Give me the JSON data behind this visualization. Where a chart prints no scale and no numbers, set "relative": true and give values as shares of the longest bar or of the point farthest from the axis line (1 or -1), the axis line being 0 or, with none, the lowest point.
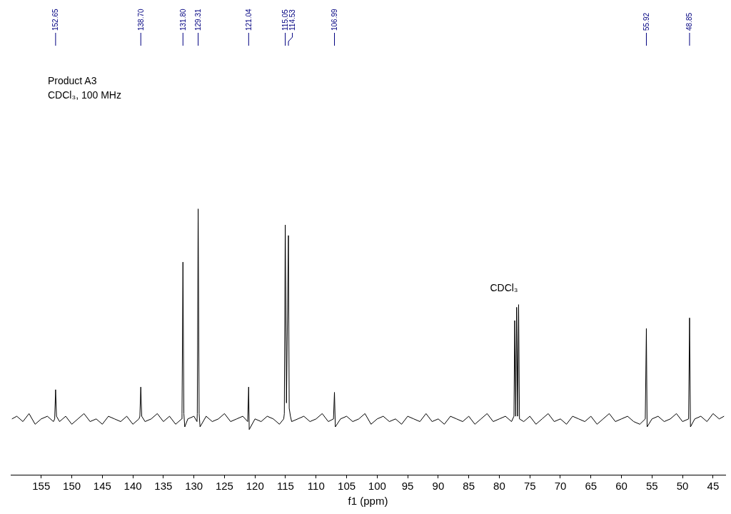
{
  "chart_data": {
    "type": "line",
    "title": "Product A3",
    "subtitle": "CDCl₃, 100 MHz",
    "xlabel": "f1 (ppm)",
    "relative": true,
    "grid": false,
    "xlim": [
      160,
      43
    ],
    "xticks": [
      155,
      150,
      145,
      140,
      135,
      130,
      125,
      120,
      115,
      110,
      105,
      100,
      95,
      90,
      85,
      80,
      75,
      70,
      65,
      60,
      55,
      50,
      45
    ],
    "annotations": [
      {
        "text": "152.65",
        "x": 152.65
      },
      {
        "text": "138.70",
        "x": 138.7
      },
      {
        "text": "131.80",
        "x": 131.8
      },
      {
        "text": "129.31",
        "x": 129.31
      },
      {
        "text": "121.04",
        "x": 121.04
      },
      {
        "text": "115.05",
        "x": 115.05
      },
      {
        "text": "114.53",
        "x": 114.53
      },
      {
        "text": "106.99",
        "x": 106.99
      },
      {
        "text": "55.92",
        "x": 55.92
      },
      {
        "text": "48.85",
        "x": 48.85
      },
      "CDCl₃"
    ],
    "series": [
      {
        "color": "#000000",
        "x": [
          159.8,
          159,
          158,
          157,
          156,
          155,
          154,
          153,
          152.8,
          152.65,
          152.5,
          152,
          151,
          150,
          149,
          148,
          147,
          146,
          145,
          144,
          143,
          142,
          141,
          140,
          139,
          138.85,
          138.7,
          138.55,
          138,
          137,
          136,
          135,
          134,
          133,
          132,
          131.95,
          131.8,
          131.65,
          131.5,
          131,
          130,
          129.5,
          129.45,
          129.31,
          129.15,
          129,
          128,
          127,
          126,
          125,
          124,
          123,
          122,
          121.2,
          121.04,
          120.95,
          120,
          119,
          118,
          117,
          116,
          115.3,
          115.2,
          115.05,
          114.85,
          114.53,
          114.4,
          114.2,
          114,
          113,
          112,
          111,
          110,
          109,
          108,
          107.15,
          106.99,
          106.85,
          106,
          105,
          104,
          103,
          102,
          101,
          100,
          99,
          98,
          97,
          96,
          95,
          94,
          93,
          92,
          91,
          90,
          89,
          88,
          87,
          86,
          85,
          84,
          83,
          82,
          81,
          80,
          79,
          78,
          77.6,
          77.48,
          77.32,
          77.16,
          77,
          76.84,
          76.7,
          76,
          75,
          74,
          73,
          72,
          71,
          70,
          69,
          68,
          67,
          66,
          65,
          64,
          63,
          62,
          61,
          60,
          59,
          58,
          57,
          56.1,
          55.92,
          55.8,
          55,
          54,
          53,
          52,
          51,
          50,
          49,
          48.85,
          48.7,
          48,
          47,
          46,
          45,
          44,
          43.2
        ],
        "values": [
          0.21,
          0.22,
          0.2,
          0.23,
          0.19,
          0.21,
          0.22,
          0.2,
          0.21,
          0.32,
          0.22,
          0.2,
          0.22,
          0.19,
          0.21,
          0.23,
          0.2,
          0.21,
          0.19,
          0.22,
          0.21,
          0.2,
          0.22,
          0.19,
          0.21,
          0.22,
          0.33,
          0.22,
          0.2,
          0.21,
          0.23,
          0.2,
          0.22,
          0.19,
          0.21,
          0.23,
          0.8,
          0.23,
          0.18,
          0.21,
          0.22,
          0.2,
          0.23,
          1,
          0.23,
          0.18,
          0.22,
          0.2,
          0.21,
          0.23,
          0.2,
          0.21,
          0.22,
          0.2,
          0.33,
          0.17,
          0.21,
          0.2,
          0.22,
          0.21,
          0.19,
          0.21,
          0.23,
          0.94,
          0.27,
          0.9,
          0.25,
          0.22,
          0.2,
          0.21,
          0.22,
          0.2,
          0.21,
          0.23,
          0.2,
          0.21,
          0.31,
          0.18,
          0.21,
          0.22,
          0.2,
          0.21,
          0.23,
          0.19,
          0.21,
          0.22,
          0.2,
          0.21,
          0.19,
          0.22,
          0.21,
          0.2,
          0.23,
          0.2,
          0.21,
          0.19,
          0.22,
          0.21,
          0.2,
          0.22,
          0.19,
          0.21,
          0.23,
          0.2,
          0.21,
          0.22,
          0.2,
          0.22,
          0.58,
          0.22,
          0.63,
          0.22,
          0.64,
          0.21,
          0.2,
          0.22,
          0.19,
          0.21,
          0.23,
          0.2,
          0.21,
          0.19,
          0.22,
          0.21,
          0.2,
          0.22,
          0.19,
          0.21,
          0.23,
          0.2,
          0.21,
          0.22,
          0.2,
          0.19,
          0.21,
          0.55,
          0.18,
          0.21,
          0.22,
          0.2,
          0.21,
          0.23,
          0.2,
          0.21,
          0.59,
          0.18,
          0.21,
          0.22,
          0.2,
          0.23,
          0.21,
          0.22
        ]
      }
    ]
  }
}
